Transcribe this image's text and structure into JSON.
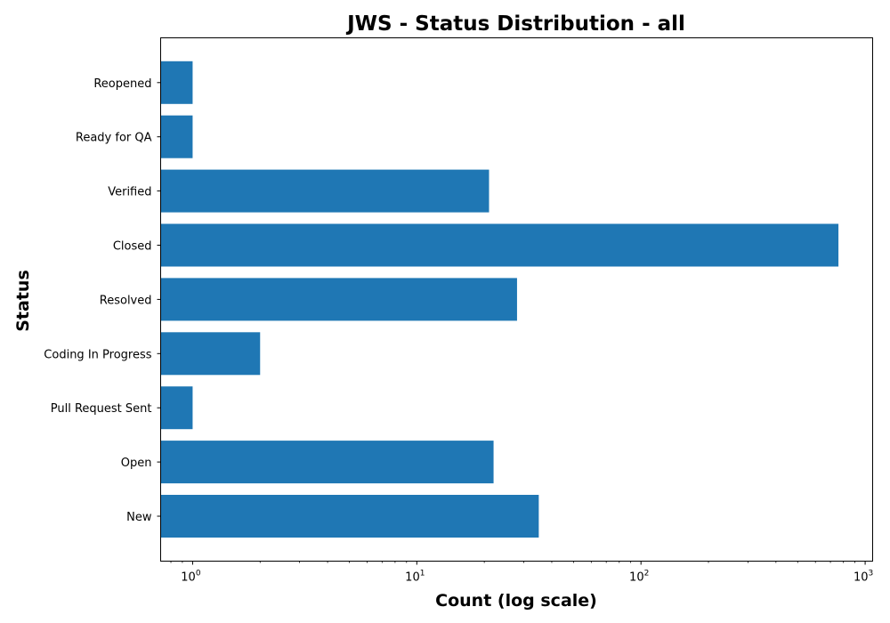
{
  "chart_data": {
    "type": "bar",
    "orientation": "horizontal",
    "title": "JWS - Status Distribution - all",
    "xlabel": "Count (log scale)",
    "ylabel": "Status",
    "x_scale": "log",
    "xlim": [
      0.72,
      1080
    ],
    "x_ticks": [
      {
        "base": "10",
        "exp": "0",
        "value": 1
      },
      {
        "base": "10",
        "exp": "1",
        "value": 10
      },
      {
        "base": "10",
        "exp": "2",
        "value": 100
      },
      {
        "base": "10",
        "exp": "3",
        "value": 1000
      }
    ],
    "categories": [
      "New",
      "Open",
      "Pull Request Sent",
      "Coding In Progress",
      "Resolved",
      "Closed",
      "Verified",
      "Ready for QA",
      "Reopened"
    ],
    "values": [
      35,
      22,
      1,
      2,
      28,
      760,
      21,
      1,
      1
    ],
    "bar_color": "#1f77b4",
    "grid": false,
    "legend": "none"
  }
}
